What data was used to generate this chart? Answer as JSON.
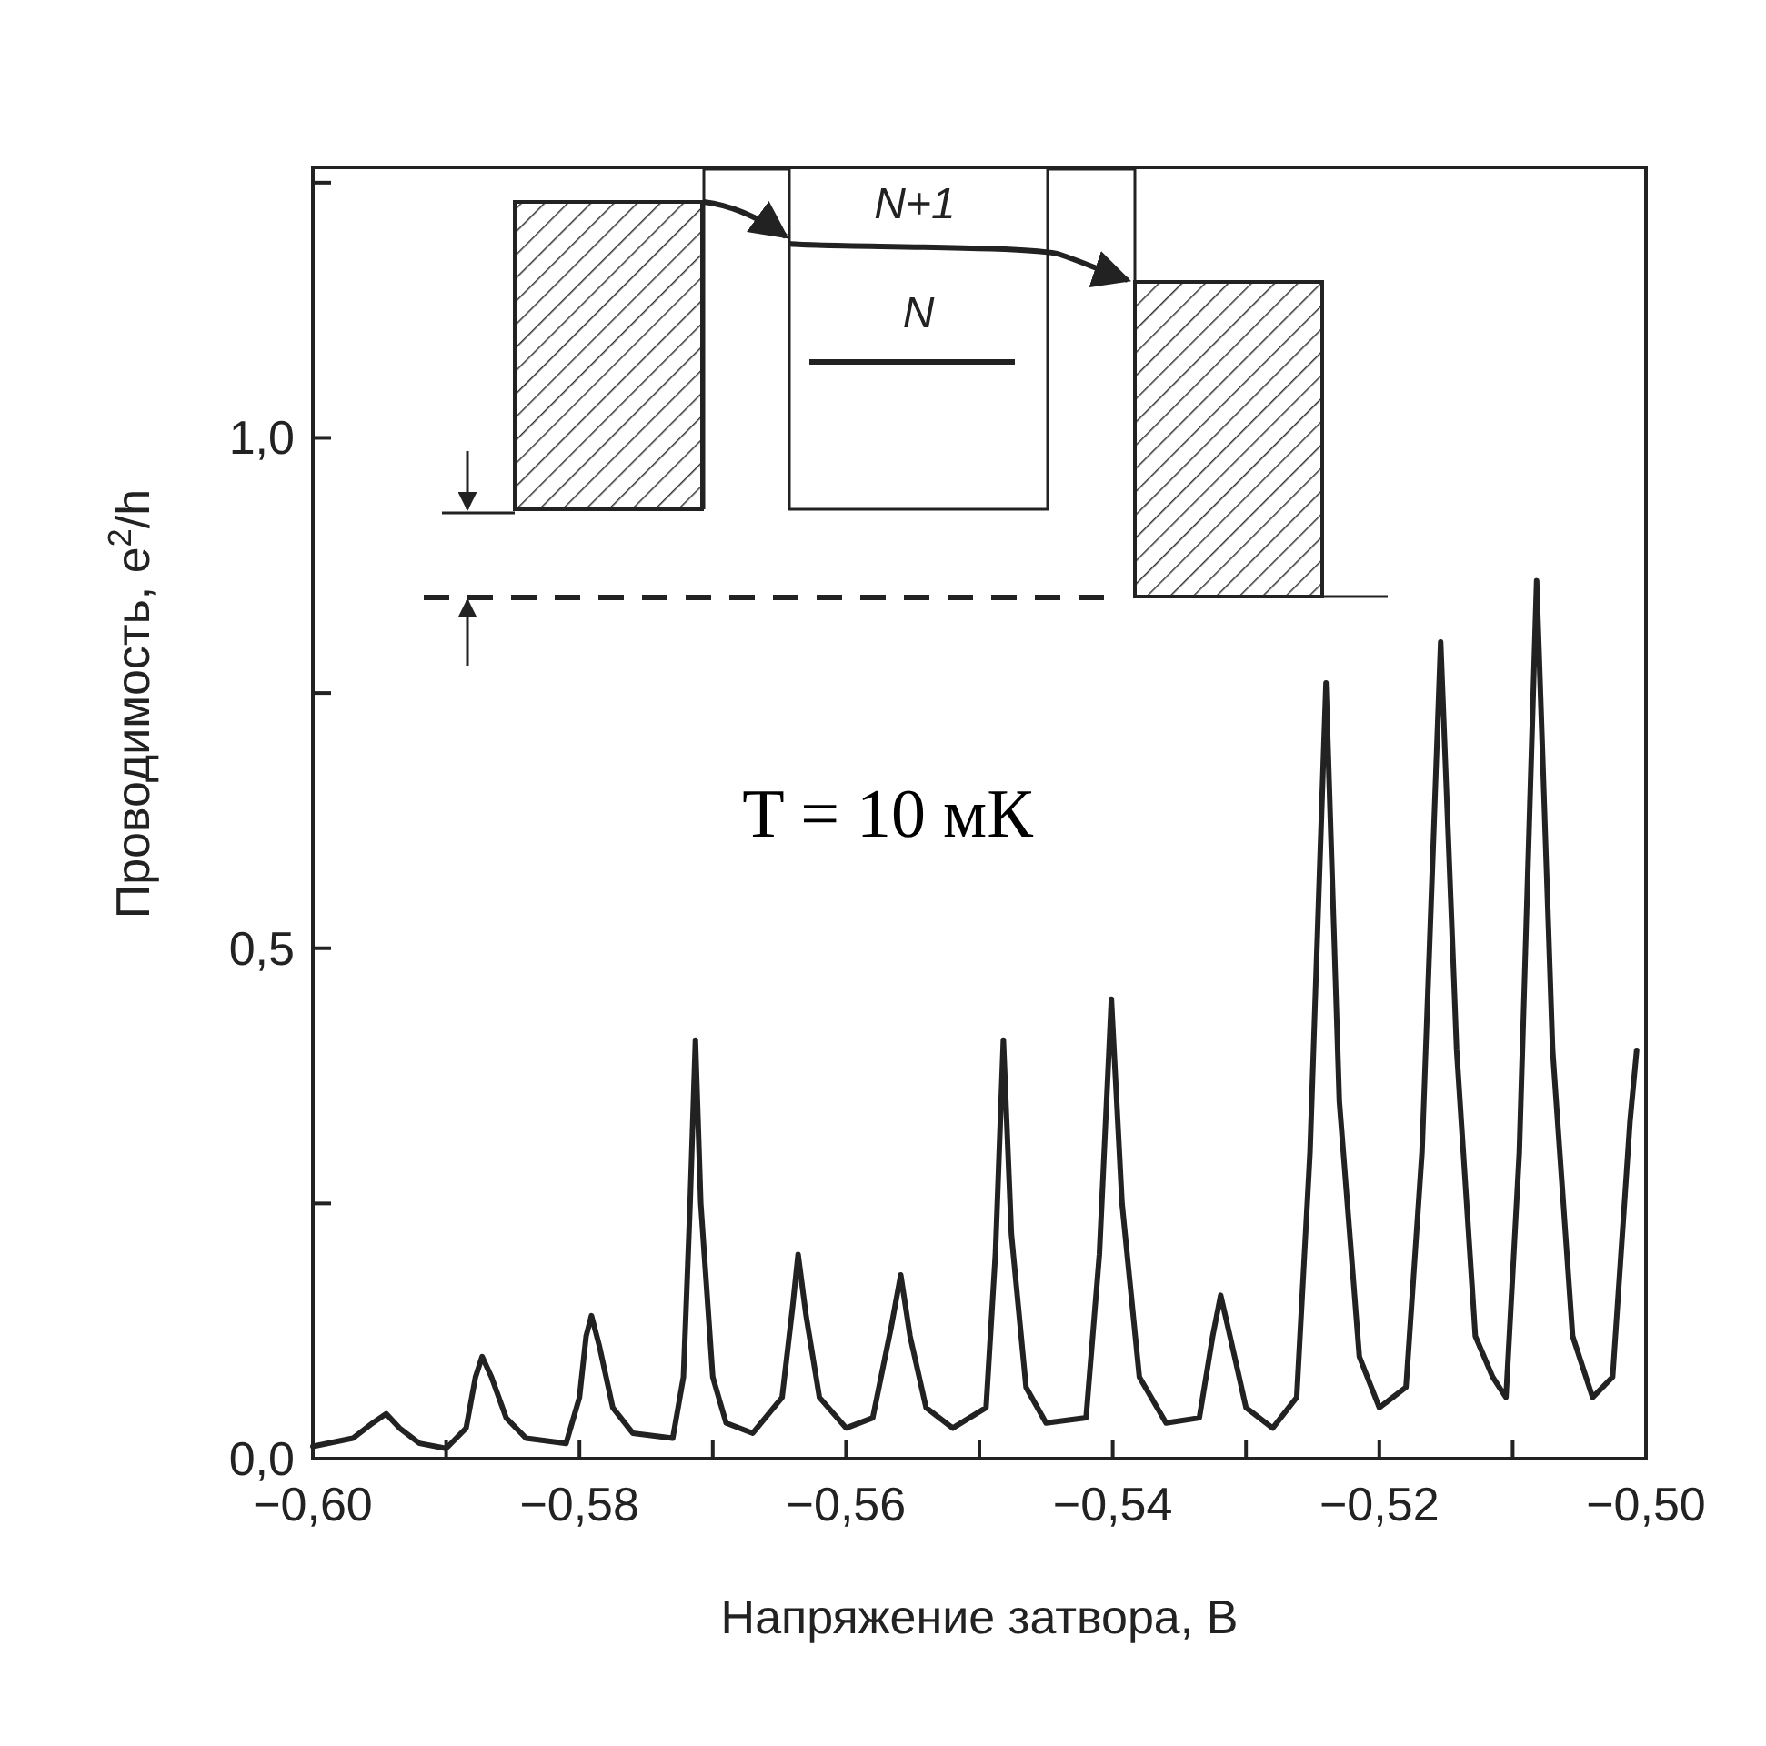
{
  "chart_data": {
    "type": "line",
    "xlabel": "Напряжение затвора, В",
    "ylabel": "Проводимость, e$^{2}$/h",
    "annotations": [
      "T = 10 мК",
      "N+1",
      "N"
    ],
    "xlim": [
      -0.6,
      -0.5
    ],
    "ylim": [
      0,
      1.265
    ],
    "xticks": [
      {
        "value": -0.6,
        "label": "−0,60"
      },
      {
        "value": -0.59,
        "label": null
      },
      {
        "value": -0.58,
        "label": "−0,58"
      },
      {
        "value": -0.57,
        "label": null
      },
      {
        "value": -0.56,
        "label": "−0,56"
      },
      {
        "value": -0.55,
        "label": null
      },
      {
        "value": -0.54,
        "label": "−0,54"
      },
      {
        "value": -0.53,
        "label": null
      },
      {
        "value": -0.52,
        "label": "−0,52"
      },
      {
        "value": -0.51,
        "label": null
      },
      {
        "value": -0.5,
        "label": "−0,50"
      }
    ],
    "yticks": [
      {
        "value": 0,
        "label": "0,0"
      },
      {
        "value": 0.25,
        "label": null
      },
      {
        "value": 0.5,
        "label": "0,5"
      },
      {
        "value": 0.75,
        "label": null
      },
      {
        "value": 1.0,
        "label": "1,0"
      },
      {
        "value": 1.25,
        "label": null
      }
    ],
    "grid": false,
    "marker": "none",
    "line_style": "solid",
    "series": [
      {
        "color": "#222222",
        "x": [
          -0.6,
          -0.597,
          -0.5955,
          -0.5945,
          -0.5935,
          -0.592,
          -0.59,
          -0.5885,
          -0.5878,
          -0.5873,
          -0.5866,
          -0.5855,
          -0.584,
          -0.581,
          -0.58,
          -0.5795,
          -0.5791,
          -0.5785,
          -0.5775,
          -0.576,
          -0.573,
          -0.5722,
          -0.5717,
          -0.5713,
          -0.5709,
          -0.57,
          -0.569,
          -0.567,
          -0.5648,
          -0.564,
          -0.5636,
          -0.563,
          -0.562,
          -0.56,
          -0.558,
          -0.5566,
          -0.5559,
          -0.5552,
          -0.554,
          -0.552,
          -0.5495,
          -0.5488,
          -0.5482,
          -0.5476,
          -0.5465,
          -0.545,
          -0.542,
          -0.541,
          -0.5401,
          -0.5393,
          -0.538,
          -0.536,
          -0.5335,
          -0.5325,
          -0.5319,
          -0.5312,
          -0.53,
          -0.528,
          -0.5262,
          -0.5252,
          -0.524,
          -0.523,
          -0.5215,
          -0.52,
          -0.518,
          -0.5168,
          -0.5154,
          -0.5142,
          -0.5128,
          -0.5115,
          -0.5105,
          -0.5095,
          -0.5082,
          -0.507,
          -0.5055,
          -0.504,
          -0.5025,
          -0.5012,
          -0.5007
        ],
        "values": [
          0.012,
          0.02,
          0.035,
          0.044,
          0.03,
          0.015,
          0.01,
          0.03,
          0.08,
          0.1,
          0.08,
          0.04,
          0.02,
          0.015,
          0.06,
          0.12,
          0.14,
          0.11,
          0.05,
          0.025,
          0.02,
          0.08,
          0.25,
          0.41,
          0.25,
          0.08,
          0.035,
          0.025,
          0.06,
          0.15,
          0.2,
          0.14,
          0.06,
          0.03,
          0.04,
          0.13,
          0.18,
          0.12,
          0.05,
          0.03,
          0.05,
          0.2,
          0.41,
          0.22,
          0.07,
          0.035,
          0.04,
          0.2,
          0.45,
          0.25,
          0.08,
          0.035,
          0.04,
          0.12,
          0.16,
          0.12,
          0.05,
          0.03,
          0.06,
          0.3,
          0.76,
          0.35,
          0.1,
          0.05,
          0.07,
          0.3,
          0.8,
          0.4,
          0.12,
          0.08,
          0.06,
          0.3,
          0.86,
          0.4,
          0.12,
          0.06,
          0.08,
          0.33,
          0.4
        ]
      }
    ]
  }
}
